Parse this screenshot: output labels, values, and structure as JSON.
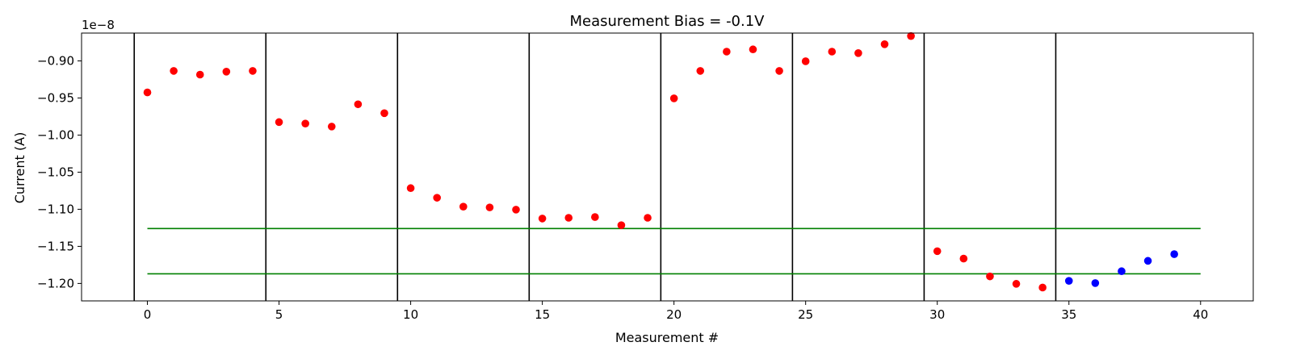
{
  "chart_data": {
    "type": "scatter",
    "title": "Measurement Bias = -0.1V",
    "xlabel": "Measurement #",
    "ylabel": "Current (A)",
    "y_offset_label": "1e−8",
    "xlim": [
      -2.5,
      42.0
    ],
    "ylim": [
      -1.2235,
      -0.8625
    ],
    "grid": false,
    "x_ticks": [
      0,
      5,
      10,
      15,
      20,
      25,
      30,
      35,
      40
    ],
    "y_ticks": [
      -0.9,
      -0.95,
      -1.0,
      -1.05,
      -1.1,
      -1.15,
      -1.2
    ],
    "y_tick_labels": [
      "−0.90",
      "−0.95",
      "−1.00",
      "−1.05",
      "−1.10",
      "−1.15",
      "−1.20"
    ],
    "series": [
      {
        "color": "#ff0000",
        "x": [
          0,
          1,
          2,
          3,
          4,
          5,
          6,
          7,
          8,
          9,
          10,
          11,
          12,
          13,
          14,
          15,
          16,
          17,
          18,
          19,
          20,
          21,
          22,
          23,
          24,
          25,
          26,
          27,
          28,
          29,
          30,
          31,
          32,
          33,
          34
        ],
        "y": [
          -0.9425,
          -0.9135,
          -0.9185,
          -0.9145,
          -0.9135,
          -0.9825,
          -0.9845,
          -0.9885,
          -0.9585,
          -0.9705,
          -1.0715,
          -1.0845,
          -1.0965,
          -1.0975,
          -1.1005,
          -1.1125,
          -1.1115,
          -1.1105,
          -1.1215,
          -1.1115,
          -0.9505,
          -0.9135,
          -0.8875,
          -0.8845,
          -0.9135,
          -0.9005,
          -0.8875,
          -0.8895,
          -0.8775,
          -0.8665,
          -1.1565,
          -1.1665,
          -1.1905,
          -1.2005,
          -1.2055
        ]
      },
      {
        "color": "#0000ff",
        "x": [
          35,
          36,
          37,
          38,
          39
        ],
        "y": [
          -1.1965,
          -1.1995,
          -1.1835,
          -1.1695,
          -1.1605
        ]
      }
    ],
    "vlines": {
      "color": "#000000",
      "x": [
        -0.5,
        4.5,
        9.5,
        14.5,
        19.5,
        24.5,
        29.5,
        34.5
      ]
    },
    "hlines": {
      "color": "#008000",
      "y": [
        -1.126,
        -1.187
      ],
      "xmin": 0,
      "xmax": 40
    }
  }
}
